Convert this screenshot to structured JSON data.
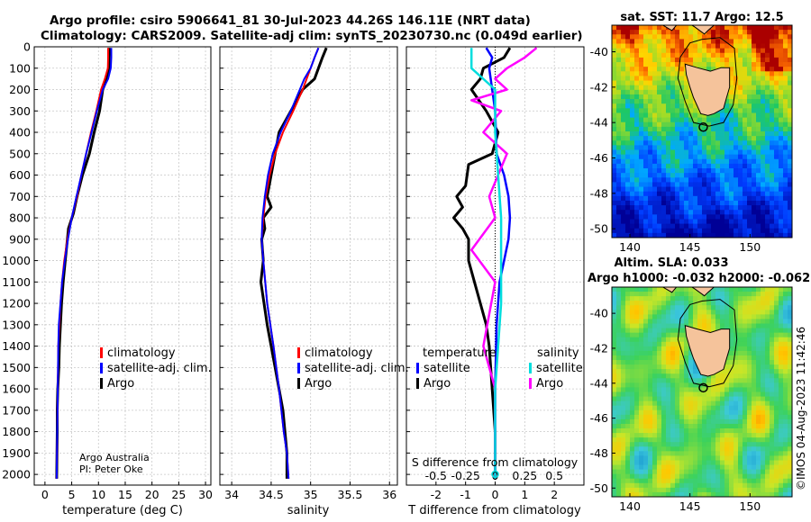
{
  "title": {
    "line1": "Argo profile: csiro 5906641_81 30-Jul-2023 44.26S 146.11E (NRT data)",
    "line2": "Climatology: CARS2009. Satellite-adj clim: synTS_20230730.nc (0.049d earlier)"
  },
  "credit": {
    "line1": "Argo Australia",
    "line2": "PI: Peter Oke"
  },
  "timestamp": "©IMOS 04-Aug-2023 11:42:46",
  "colors": {
    "argo": "#000000",
    "climatology": "#ff0000",
    "satellite_adj": "#0000ff",
    "s_sat": "#00dddd",
    "s_argo": "#ff00ff",
    "land": "#f5c39b"
  },
  "chart_data": [
    {
      "type": "line",
      "name": "temperature",
      "xlabel": "temperature (deg C)",
      "ylabel": "",
      "xlim": [
        -2,
        31
      ],
      "ylim": [
        2050,
        0
      ],
      "grid": true,
      "xticks": [
        0,
        5,
        10,
        15,
        20,
        25,
        30
      ],
      "yticks": [
        0,
        100,
        200,
        300,
        400,
        500,
        600,
        700,
        800,
        900,
        1000,
        1100,
        1200,
        1300,
        1400,
        1500,
        1600,
        1700,
        1800,
        1900,
        2000
      ],
      "legend": [
        "climatology",
        "satellite-adj. clim.",
        "Argo"
      ],
      "series": [
        {
          "name": "Argo",
          "x": [
            12.0,
            11.95,
            11.95,
            11.8,
            11.6,
            10.8,
            10.2,
            9.2,
            8.3,
            7.0,
            6.0,
            5.3,
            4.4,
            4.2,
            3.8,
            3.4,
            3.1,
            2.9,
            2.7,
            2.6,
            2.4,
            2.3,
            2.3,
            2.2
          ],
          "y": [
            5,
            50,
            100,
            130,
            150,
            200,
            300,
            400,
            500,
            600,
            700,
            780,
            850,
            900,
            1000,
            1100,
            1200,
            1300,
            1400,
            1500,
            1600,
            1700,
            1800,
            2020
          ]
        },
        {
          "name": "climatology",
          "x": [
            11.8,
            11.8,
            11.75,
            11.2,
            10.5,
            9.6,
            8.6,
            7.7,
            6.8,
            6.0,
            5.0,
            4.2,
            3.6,
            3.2,
            2.9,
            2.7,
            2.5,
            2.4,
            2.3,
            2.2
          ],
          "y": [
            5,
            50,
            100,
            150,
            200,
            300,
            400,
            500,
            600,
            700,
            800,
            900,
            1000,
            1100,
            1200,
            1300,
            1400,
            1600,
            1800,
            2020
          ]
        },
        {
          "name": "satellite-adj. clim.",
          "x": [
            12.4,
            12.4,
            12.3,
            11.8,
            10.8,
            9.7,
            8.7,
            7.7,
            6.8,
            5.9,
            5.0,
            4.3,
            3.7,
            3.2,
            2.9,
            2.6,
            2.5,
            2.4,
            2.3,
            2.2
          ],
          "y": [
            5,
            50,
            100,
            150,
            200,
            300,
            400,
            500,
            600,
            700,
            800,
            900,
            1000,
            1100,
            1200,
            1300,
            1400,
            1600,
            1800,
            2020
          ]
        }
      ]
    },
    {
      "type": "line",
      "name": "salinity",
      "xlabel": "salinity",
      "ylabel": "",
      "xlim": [
        33.85,
        36.1
      ],
      "ylim": [
        2050,
        0
      ],
      "grid": true,
      "xticks": [
        34,
        34.5,
        35,
        35.5,
        36
      ],
      "legend": [
        "climatology",
        "satellite-adj. clim.",
        "Argo"
      ],
      "series": [
        {
          "name": "Argo",
          "x": [
            35.2,
            35.15,
            35.1,
            35.05,
            34.9,
            34.75,
            34.6,
            34.55,
            34.5,
            34.45,
            34.5,
            34.4,
            34.42,
            34.38,
            34.4,
            34.37,
            34.45,
            34.55,
            34.65,
            34.7,
            34.7
          ],
          "y": [
            5,
            50,
            100,
            150,
            200,
            300,
            400,
            500,
            600,
            700,
            750,
            800,
            850,
            900,
            1000,
            1100,
            1300,
            1500,
            1700,
            1900,
            2020
          ]
        },
        {
          "name": "climatology",
          "x": [
            35.1,
            35.05,
            35.0,
            34.9,
            34.78,
            34.65,
            34.55,
            34.48,
            34.43,
            34.4,
            34.38,
            34.4,
            34.45,
            34.53,
            34.6,
            34.66,
            34.7,
            34.72
          ],
          "y": [
            5,
            50,
            100,
            200,
            300,
            400,
            500,
            600,
            700,
            800,
            900,
            1000,
            1200,
            1400,
            1600,
            1800,
            1900,
            2020
          ]
        },
        {
          "name": "satellite-adj. clim.",
          "x": [
            35.1,
            35.05,
            35.0,
            34.92,
            34.75,
            34.62,
            34.52,
            34.46,
            34.42,
            34.39,
            34.38,
            34.4,
            34.45,
            34.53,
            34.6,
            34.66,
            34.7,
            34.72
          ],
          "y": [
            5,
            50,
            100,
            150,
            300,
            400,
            500,
            600,
            700,
            800,
            900,
            1000,
            1200,
            1400,
            1600,
            1800,
            1900,
            2020
          ]
        }
      ]
    },
    {
      "type": "line",
      "name": "difference",
      "xlabel": "T difference from climatology",
      "title_bottom": "S difference from climatology",
      "xlim": [
        -3,
        3
      ],
      "ylim": [
        2050,
        0
      ],
      "grid": true,
      "xticks": [
        -2,
        -1,
        0,
        1,
        2
      ],
      "xticks_salinity": [
        "-0.5",
        "-0.25",
        "0",
        "0.25",
        "0.5"
      ],
      "legend_left": [
        "temperature",
        "satellite",
        "Argo"
      ],
      "legend_right": [
        "salinity",
        "satellite",
        "Argo"
      ],
      "series": [
        {
          "name": "T Argo",
          "x": [
            0.5,
            0.3,
            -0.4,
            -0.5,
            -0.8,
            -0.3,
            0.1,
            -0.1,
            -0.9,
            -1.0,
            -1.3,
            -1.1,
            -1.4,
            -1.1,
            -0.9,
            -0.9,
            -0.7,
            -0.5,
            -0.3,
            -0.2,
            -0.1,
            0.0,
            0.0
          ],
          "y": [
            5,
            50,
            100,
            150,
            200,
            300,
            400,
            500,
            550,
            650,
            700,
            750,
            800,
            850,
            900,
            1000,
            1100,
            1200,
            1300,
            1400,
            1600,
            1800,
            2020
          ]
        },
        {
          "name": "T satellite",
          "x": [
            -0.3,
            -0.1,
            -0.2,
            -0.1,
            0.0,
            0.05,
            0.3,
            0.45,
            0.5,
            0.45,
            0.3,
            0.15,
            0.05,
            0.0,
            0.0
          ],
          "y": [
            5,
            50,
            100,
            200,
            300,
            500,
            600,
            700,
            800,
            900,
            1000,
            1100,
            1300,
            1600,
            2020
          ]
        },
        {
          "name": "S Argo",
          "x": [
            0.35,
            0.25,
            0.1,
            0.0,
            0.1,
            -0.2,
            0.05,
            -0.1,
            0.1,
            -0.05,
            0.0,
            -0.2,
            0.0,
            -0.1,
            0.0,
            0.0
          ],
          "y": [
            5,
            50,
            100,
            150,
            200,
            250,
            300,
            400,
            500,
            700,
            800,
            950,
            1100,
            1400,
            1600,
            2020
          ]
        },
        {
          "name": "S satellite",
          "x": [
            -0.2,
            -0.2,
            0.0,
            0.0,
            0.05,
            0.05,
            0.0,
            0.0
          ],
          "y": [
            5,
            100,
            200,
            400,
            800,
            1200,
            1600,
            2020
          ]
        }
      ]
    },
    {
      "type": "heatmap",
      "name": "sst-map",
      "title": "sat. SST: 11.7 Argo: 12.5",
      "xlim": [
        138.5,
        153.5
      ],
      "ylim": [
        -50.5,
        -38.5
      ],
      "xticks": [
        140,
        145,
        150
      ],
      "yticks": [
        -40,
        -42,
        -44,
        -46,
        -48,
        -50
      ],
      "argo_position": [
        146.11,
        -44.26
      ]
    },
    {
      "type": "heatmap",
      "name": "sla-map",
      "title": "Altim. SLA: 0.033",
      "subtitle": "Argo h1000: -0.032 h2000: -0.062",
      "xlim": [
        138.5,
        153.5
      ],
      "ylim": [
        -50.5,
        -38.5
      ],
      "xticks": [
        140,
        145,
        150
      ],
      "yticks": [
        -40,
        -42,
        -44,
        -46,
        -48,
        -50
      ],
      "argo_position": [
        146.11,
        -44.26
      ]
    }
  ]
}
